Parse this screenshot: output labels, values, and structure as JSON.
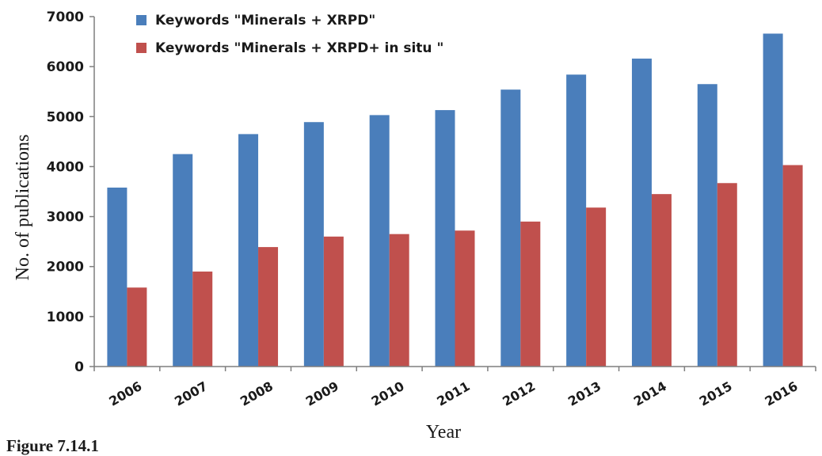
{
  "caption": "Figure 7.14.1",
  "chart_data": {
    "type": "bar",
    "categories": [
      "2006",
      "2007",
      "2008",
      "2009",
      "2010",
      "2011",
      "2012",
      "2013",
      "2014",
      "2015",
      "2016"
    ],
    "series": [
      {
        "name": "Keywords \"Minerals + XRPD\"",
        "color": "#4a7ebb",
        "values": [
          3580,
          4250,
          4650,
          4890,
          5030,
          5130,
          5540,
          5840,
          6160,
          5650,
          6660
        ]
      },
      {
        "name": "Keywords \"Minerals + XRPD+ in situ \"",
        "color": "#c0504d",
        "values": [
          1580,
          1900,
          2390,
          2600,
          2650,
          2720,
          2900,
          3180,
          3450,
          3670,
          4030
        ]
      }
    ],
    "xlabel": "Year",
    "ylabel": "No. of publications",
    "ylim": [
      0,
      7000
    ],
    "yticks": [
      "0",
      "1000",
      "2000",
      "3000",
      "4000",
      "5000",
      "6000",
      "7000"
    ],
    "grid": false,
    "legend_position": "top-left"
  }
}
